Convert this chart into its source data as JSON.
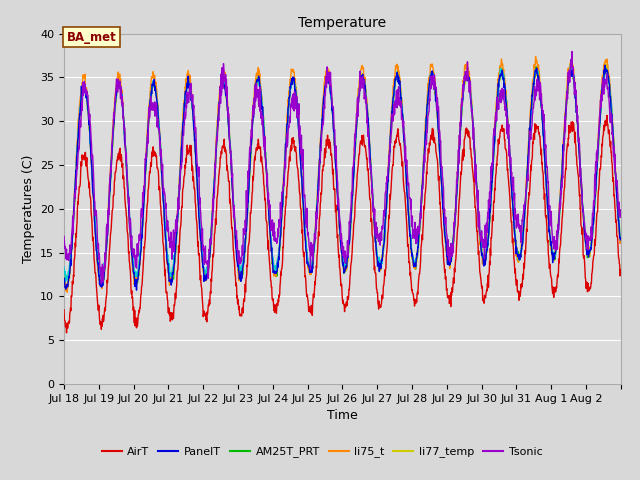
{
  "title": "Temperature",
  "xlabel": "Time",
  "ylabel": "Temperatures (C)",
  "ylim": [
    0,
    40
  ],
  "yticks": [
    0,
    5,
    10,
    15,
    20,
    25,
    30,
    35,
    40
  ],
  "annotation": "BA_met",
  "fig_bg": "#d8d8d8",
  "plot_bg": "#dcdcdc",
  "series": {
    "AirT": {
      "color": "#dd0000",
      "lw": 1.0,
      "zorder": 5
    },
    "PanelT": {
      "color": "#0000dd",
      "lw": 1.0,
      "zorder": 4
    },
    "AM25T_PRT": {
      "color": "#00bb00",
      "lw": 1.0,
      "zorder": 3
    },
    "li75_t": {
      "color": "#ff8800",
      "lw": 1.0,
      "zorder": 3
    },
    "li77_temp": {
      "color": "#cccc00",
      "lw": 1.0,
      "zorder": 3
    },
    "Tsonic": {
      "color": "#9900cc",
      "lw": 1.0,
      "zorder": 4
    },
    "NR01_PRT": {
      "color": "#00cccc",
      "lw": 1.0,
      "zorder": 3
    }
  },
  "n_days": 16,
  "pts_per_day": 96,
  "legend_fontsize": 8,
  "title_fontsize": 10,
  "axis_fontsize": 9,
  "tick_fontsize": 8
}
